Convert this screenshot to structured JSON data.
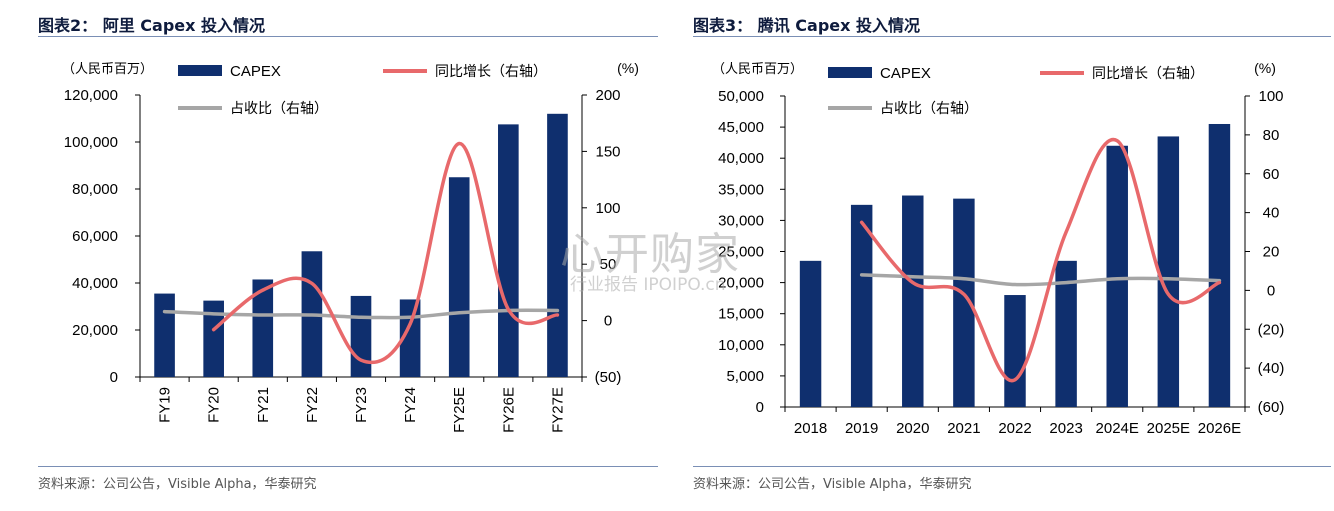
{
  "left": {
    "title": "图表2： 阿里 Capex 投入情况",
    "source": "资料来源：公司公告，Visible Alpha，华泰研究"
  },
  "right": {
    "title": "图表3： 腾讯 Capex 投入情况",
    "source": "资料来源：公司公告，Visible Alpha，华泰研究"
  },
  "watermark": {
    "main": "心开购家",
    "sub": "行业报告 IPOIPO.cn"
  },
  "colors": {
    "bar": "#0f2f6e",
    "yoy": "#e8696b",
    "share": "#a6a6a6",
    "title": "#0e1b3d",
    "rule": "#7a8fb5"
  },
  "chart_data": [
    {
      "type": "bar",
      "categories": [
        "FY19",
        "FY20",
        "FY21",
        "FY22",
        "FY23",
        "FY24",
        "FY25E",
        "FY26E",
        "FY27E"
      ],
      "left_axis_unit": "（人民币百万）",
      "right_axis_unit": "(%)",
      "left_ylim": [
        0,
        120000
      ],
      "right_ylim": [
        -50,
        200
      ],
      "left_ticks": [
        "0",
        "20,000",
        "40,000",
        "60,000",
        "80,000",
        "100,000",
        "120,000"
      ],
      "right_ticks": [
        "(50)",
        "0",
        "50",
        "100",
        "150",
        "200"
      ],
      "series": [
        {
          "name": "CAPEX",
          "kind": "bar",
          "axis": "left",
          "values": [
            35500,
            32500,
            41500,
            53500,
            34500,
            33000,
            85000,
            107500,
            112000
          ]
        },
        {
          "name": "同比增长（右轴）",
          "kind": "line",
          "axis": "right",
          "values": [
            null,
            -8,
            27,
            33,
            -35,
            -3,
            157,
            10,
            5
          ]
        },
        {
          "name": "占收比（右轴）",
          "kind": "line",
          "axis": "right",
          "values": [
            8,
            6,
            5,
            5,
            3,
            3,
            7,
            9,
            9
          ]
        }
      ]
    },
    {
      "type": "bar",
      "categories": [
        "2018",
        "2019",
        "2020",
        "2021",
        "2022",
        "2023",
        "2024E",
        "2025E",
        "2026E"
      ],
      "left_axis_unit": "（人民币百万）",
      "right_axis_unit": "(%)",
      "left_ylim": [
        0,
        50000
      ],
      "right_ylim": [
        -60,
        100
      ],
      "left_ticks": [
        "0",
        "5,000",
        "10,000",
        "15,000",
        "20,000",
        "25,000",
        "30,000",
        "35,000",
        "40,000",
        "45,000",
        "50,000"
      ],
      "right_ticks": [
        "(60)",
        "(40)",
        "(20)",
        "0",
        "20",
        "40",
        "60",
        "80",
        "100"
      ],
      "series": [
        {
          "name": "CAPEX",
          "kind": "bar",
          "axis": "left",
          "values": [
            23500,
            32500,
            34000,
            33500,
            18000,
            23500,
            42000,
            43500,
            45500
          ]
        },
        {
          "name": "同比增长（右轴）",
          "kind": "line",
          "axis": "right",
          "values": [
            null,
            35,
            4,
            -2,
            -46,
            30,
            77,
            -2,
            4
          ]
        },
        {
          "name": "占收比（右轴）",
          "kind": "line",
          "axis": "right",
          "values": [
            null,
            8,
            7,
            6,
            3,
            4,
            6,
            6,
            5
          ]
        }
      ]
    }
  ]
}
